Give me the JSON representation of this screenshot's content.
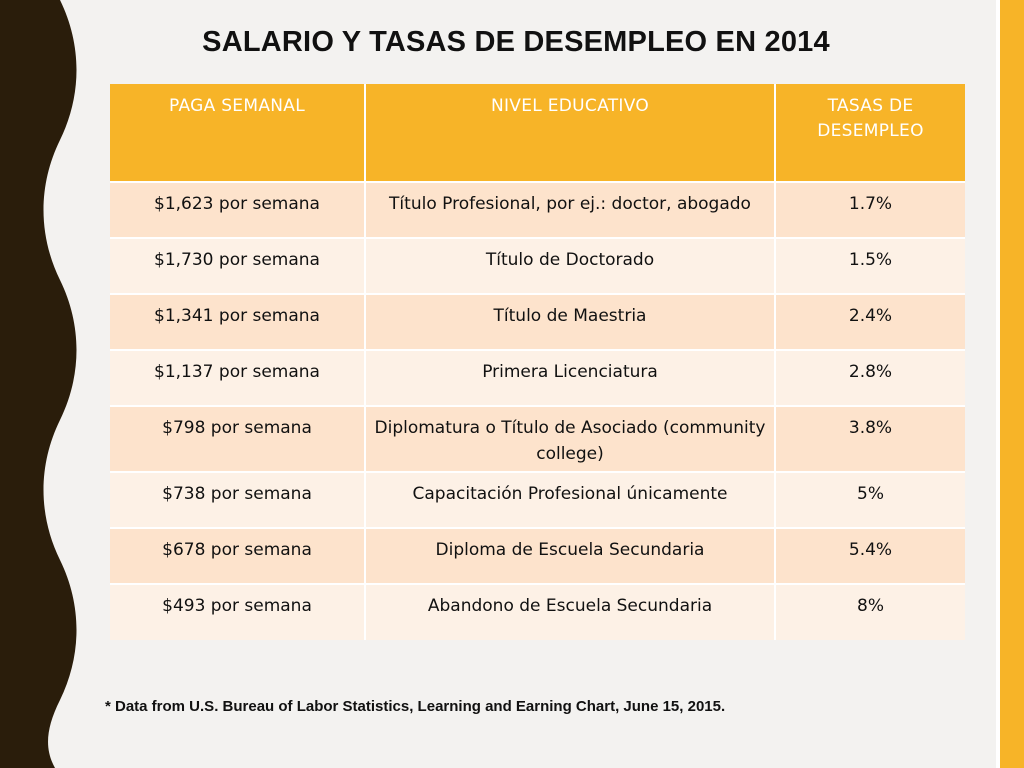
{
  "slide": {
    "title": "SALARIO Y TASAS DE DESEMPLEO EN 2014",
    "colors": {
      "header": "#f7b428",
      "row_odd": "#fde3cc",
      "row_even": "#fdf1e6",
      "wave": "#2a1d0b"
    }
  },
  "table": {
    "headers": [
      "PAGA SEMANAL",
      "NIVEL EDUCATIVO",
      "TASAS DE DESEMPLEO"
    ],
    "rows": [
      [
        "$1,623 por semana",
        "Título Profesional, por ej.: doctor, abogado",
        "1.7%"
      ],
      [
        "$1,730 por semana",
        "Título de Doctorado",
        "1.5%"
      ],
      [
        "$1,341 por semana",
        "Título de Maestria",
        "2.4%"
      ],
      [
        "$1,137 por semana",
        "Primera Licenciatura",
        "2.8%"
      ],
      [
        "$798 por semana",
        "Diplomatura o Título de Asociado (community college)",
        "3.8%"
      ],
      [
        "$738 por semana",
        "Capacitación Profesional únicamente",
        "5%"
      ],
      [
        "$678 por semana",
        "Diploma de Escuela Secundaria",
        "5.4%"
      ],
      [
        "$493 por semana",
        "Abandono de Escuela Secundaria",
        "8%"
      ]
    ]
  },
  "footnote": "* Data from U.S. Bureau of Labor Statistics, Learning and Earning Chart, June 15, 2015."
}
